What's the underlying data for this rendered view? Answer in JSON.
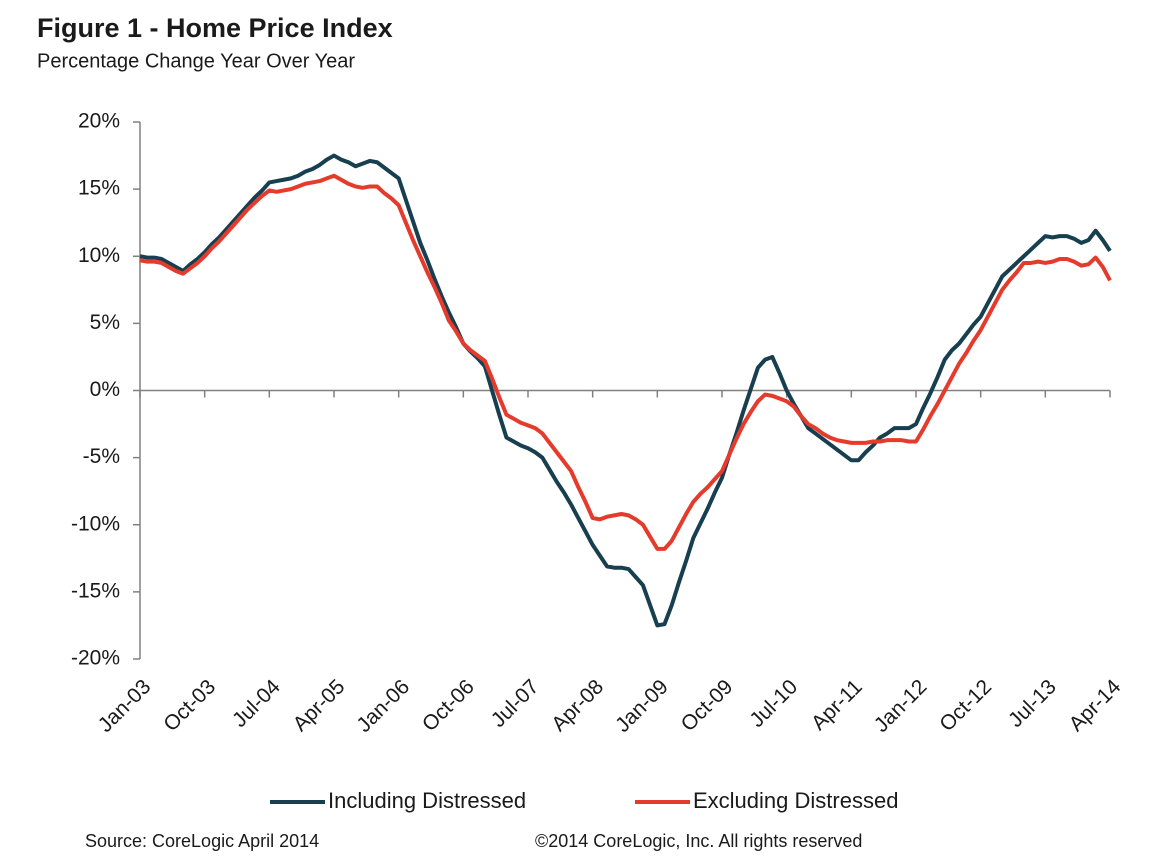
{
  "chart_data": {
    "type": "line",
    "title": "Figure 1 - Home Price Index",
    "subtitle": "Percentage Change Year Over Year",
    "source": "Source: CoreLogic  April 2014",
    "copyright": "©2014 CoreLogic, Inc. All rights reserved",
    "categories": [
      "Jan-03",
      null,
      null,
      null,
      null,
      null,
      null,
      null,
      null,
      "Oct-03",
      null,
      null,
      null,
      null,
      null,
      null,
      null,
      null,
      "Jul-04",
      null,
      null,
      null,
      null,
      null,
      null,
      null,
      null,
      "Apr-05",
      null,
      null,
      null,
      null,
      null,
      null,
      null,
      null,
      "Jan-06",
      null,
      null,
      null,
      null,
      null,
      null,
      null,
      null,
      "Oct-06",
      null,
      null,
      null,
      null,
      null,
      null,
      null,
      null,
      "Jul-07",
      null,
      null,
      null,
      null,
      null,
      null,
      null,
      null,
      "Apr-08",
      null,
      null,
      null,
      null,
      null,
      null,
      null,
      null,
      "Jan-09",
      null,
      null,
      null,
      null,
      null,
      null,
      null,
      null,
      "Oct-09",
      null,
      null,
      null,
      null,
      null,
      null,
      null,
      null,
      "Jul-10",
      null,
      null,
      null,
      null,
      null,
      null,
      null,
      null,
      "Apr-11",
      null,
      null,
      null,
      null,
      null,
      null,
      null,
      null,
      "Jan-12",
      null,
      null,
      null,
      null,
      null,
      null,
      null,
      null,
      "Oct-12",
      null,
      null,
      null,
      null,
      null,
      null,
      null,
      null,
      "Jul-13",
      null,
      null,
      null,
      null,
      null,
      null,
      null,
      null,
      "Apr-14"
    ],
    "series": [
      {
        "name": "Including Distressed",
        "color": "#173f4f",
        "values": [
          10.0,
          9.9,
          9.9,
          9.8,
          9.5,
          9.2,
          8.9,
          9.4,
          9.8,
          10.3,
          10.9,
          11.4,
          12.0,
          12.6,
          13.2,
          13.8,
          14.4,
          14.9,
          15.5,
          15.6,
          15.7,
          15.8,
          16.0,
          16.3,
          16.5,
          16.8,
          17.2,
          17.5,
          17.2,
          17.0,
          16.7,
          16.9,
          17.1,
          17.0,
          16.6,
          16.2,
          15.8,
          14.2,
          12.6,
          11.0,
          9.7,
          8.3,
          7.0,
          5.8,
          4.7,
          3.5,
          2.9,
          2.4,
          1.8,
          0.0,
          -1.8,
          -3.5,
          -3.8,
          -4.1,
          -4.3,
          -4.6,
          -5.0,
          -5.9,
          -6.8,
          -7.6,
          -8.5,
          -9.5,
          -10.5,
          -11.5,
          -12.3,
          -13.1,
          -13.2,
          -13.2,
          -13.3,
          -13.9,
          -14.5,
          -16.0,
          -17.5,
          -17.4,
          -16.0,
          -14.3,
          -12.7,
          -11.0,
          -9.9,
          -8.8,
          -7.6,
          -6.5,
          -4.8,
          -3.2,
          -1.5,
          0.1,
          1.7,
          2.3,
          2.5,
          1.3,
          0.0,
          -1.0,
          -1.9,
          -2.8,
          -3.2,
          -3.6,
          -4.0,
          -4.4,
          -4.8,
          -5.2,
          -5.2,
          -4.6,
          -4.1,
          -3.5,
          -3.2,
          -2.8,
          -2.8,
          -2.8,
          -2.5,
          -1.3,
          -0.2,
          1.0,
          2.3,
          3.0,
          3.5,
          4.2,
          4.9,
          5.5,
          6.5,
          7.5,
          8.5,
          9.0,
          9.5,
          10.0,
          10.5,
          11.0,
          11.5,
          11.4,
          11.5,
          11.5,
          11.3,
          11.0,
          11.2,
          11.9,
          11.2,
          10.4
        ]
      },
      {
        "name": "Excluding Distressed",
        "color": "#e53b2c",
        "values": [
          9.7,
          9.6,
          9.6,
          9.5,
          9.2,
          8.9,
          8.7,
          9.1,
          9.5,
          10.0,
          10.6,
          11.1,
          11.7,
          12.3,
          12.9,
          13.5,
          14.0,
          14.5,
          14.9,
          14.8,
          14.9,
          15.0,
          15.2,
          15.4,
          15.5,
          15.6,
          15.8,
          16.0,
          15.7,
          15.4,
          15.2,
          15.1,
          15.2,
          15.2,
          14.7,
          14.3,
          13.8,
          12.5,
          11.2,
          10.0,
          8.8,
          7.7,
          6.5,
          5.2,
          4.4,
          3.5,
          3.0,
          2.6,
          2.2,
          0.9,
          -0.5,
          -1.8,
          -2.1,
          -2.4,
          -2.6,
          -2.8,
          -3.2,
          -3.9,
          -4.6,
          -5.3,
          -6.0,
          -7.2,
          -8.3,
          -9.5,
          -9.6,
          -9.4,
          -9.3,
          -9.2,
          -9.3,
          -9.6,
          -10.0,
          -10.9,
          -11.8,
          -11.8,
          -11.2,
          -10.2,
          -9.2,
          -8.3,
          -7.7,
          -7.2,
          -6.6,
          -6.0,
          -4.8,
          -3.6,
          -2.5,
          -1.6,
          -0.8,
          -0.3,
          -0.4,
          -0.6,
          -0.8,
          -1.2,
          -1.9,
          -2.5,
          -2.8,
          -3.2,
          -3.5,
          -3.7,
          -3.8,
          -3.9,
          -3.9,
          -3.9,
          -3.8,
          -3.8,
          -3.7,
          -3.7,
          -3.7,
          -3.8,
          -3.8,
          -2.9,
          -1.9,
          -1.0,
          0.0,
          1.0,
          2.0,
          2.8,
          3.7,
          4.5,
          5.5,
          6.5,
          7.5,
          8.2,
          8.8,
          9.5,
          9.5,
          9.6,
          9.5,
          9.6,
          9.8,
          9.8,
          9.6,
          9.3,
          9.4,
          9.9,
          9.2,
          8.2
        ]
      }
    ],
    "ylim": [
      -20,
      20
    ],
    "yticks": [
      {
        "value": 20,
        "label": "20%"
      },
      {
        "value": 15,
        "label": "15%"
      },
      {
        "value": 10,
        "label": "10%"
      },
      {
        "value": 5,
        "label": "5%"
      },
      {
        "value": 0,
        "label": "0%"
      },
      {
        "value": -5,
        "label": "-5%"
      },
      {
        "value": -10,
        "label": "-10%"
      },
      {
        "value": -15,
        "label": "-15%"
      },
      {
        "value": -20,
        "label": "-20%"
      }
    ],
    "grid": false,
    "legend": "bottom"
  }
}
